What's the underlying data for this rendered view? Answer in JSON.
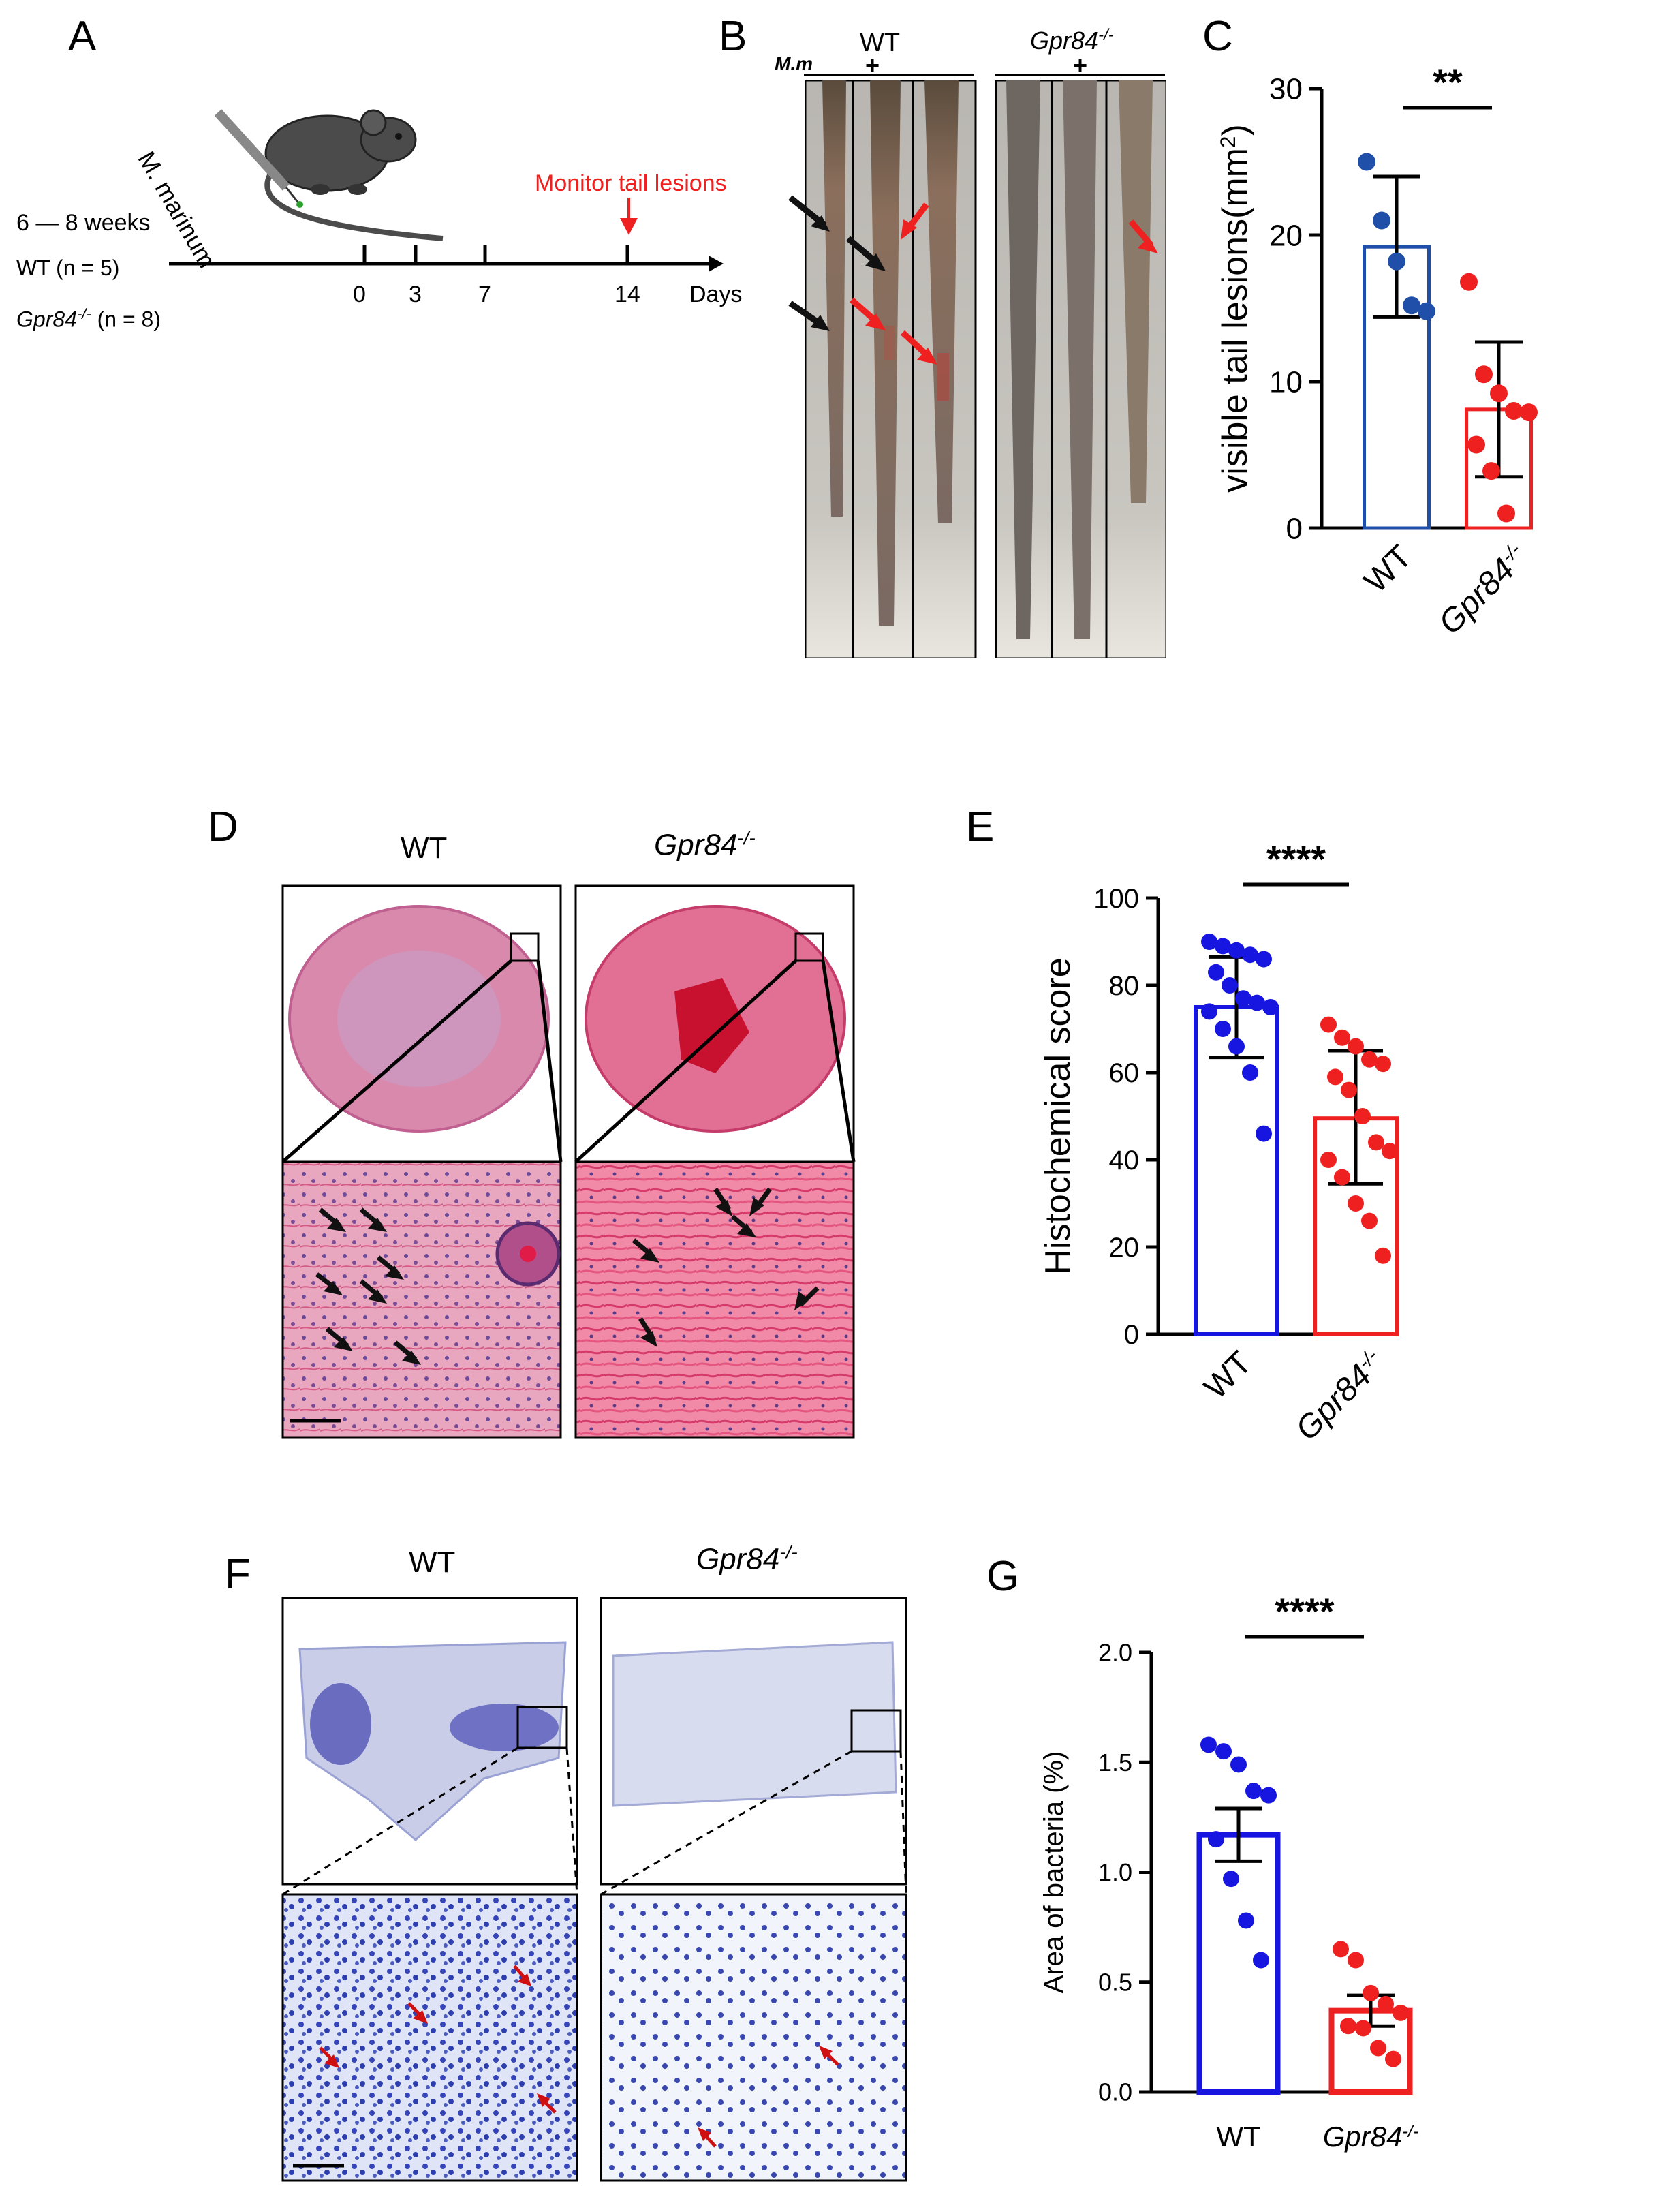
{
  "colors": {
    "wt_blue": "#1f4fa8",
    "wt_blue_bright": "#1616e0",
    "ko_red": "#ee2020",
    "he_pink": "#e6789a",
    "gram_blue": "#4a5cc0"
  },
  "panel_a": {
    "label": "A",
    "rotated_text": "M. marinum",
    "age": "6 —  8 weeks",
    "wt": "WT (n = 5)",
    "ko_gene": "Gpr84",
    "ko_super": "-/-",
    "ko_n": " (n = 8)",
    "monitor": "Monitor tail lesions",
    "days_label": "Days",
    "ticks": [
      "0",
      "3",
      "7",
      "14"
    ]
  },
  "panel_b": {
    "label": "B",
    "mm": "M.m",
    "wt": "WT",
    "ko_gene": "Gpr84",
    "ko_super": "-/-",
    "plus": "+"
  },
  "panel_d": {
    "label": "D",
    "wt": "WT",
    "ko_gene": "Gpr84",
    "ko_super": "-/-"
  },
  "panel_f": {
    "label": "F",
    "wt": "WT",
    "ko_gene": "Gpr84",
    "ko_super": "-/-"
  },
  "chart_data": [
    {
      "panel": "C",
      "type": "bar",
      "categories": [
        "WT",
        "Gpr84-/-"
      ],
      "category_labels": [
        "WT",
        "Gpr84",
        "-/-"
      ],
      "ylabel": "visible tail lesions(mm²)",
      "ylabel_main": "visible tail lesions(mm",
      "ylabel_sup": "2",
      "ylabel_end": ")",
      "ylim": [
        0,
        30
      ],
      "yticks": [
        0,
        10,
        20,
        30
      ],
      "significance": "**",
      "series": [
        {
          "name": "WT",
          "mean": 19.2,
          "sd_upper": 24.0,
          "sd_lower": 14.4,
          "points": [
            25.0,
            21.0,
            18.2,
            15.2,
            14.8
          ]
        },
        {
          "name": "Gpr84-/-",
          "mean": 8.1,
          "sd_upper": 12.7,
          "sd_lower": 3.5,
          "points": [
            16.8,
            10.5,
            9.2,
            8.0,
            7.9,
            5.7,
            3.9,
            1.0
          ]
        }
      ]
    },
    {
      "panel": "E",
      "type": "bar",
      "categories": [
        "WT",
        "Gpr84-/-"
      ],
      "category_labels": [
        "WT",
        "Gpr84",
        "-/-"
      ],
      "ylabel": "Histochemical score",
      "ylim": [
        0,
        100
      ],
      "yticks": [
        0,
        20,
        40,
        60,
        80,
        100
      ],
      "significance": "****",
      "series": [
        {
          "name": "WT",
          "mean": 75,
          "sd_upper": 86.5,
          "sd_lower": 63.5,
          "points": [
            90,
            89,
            88,
            87,
            86,
            83,
            80,
            77,
            76,
            75,
            74,
            70,
            66,
            60,
            46
          ]
        },
        {
          "name": "Gpr84-/-",
          "mean": 49.5,
          "sd_upper": 65,
          "sd_lower": 34.5,
          "points": [
            71,
            68,
            66,
            63,
            62,
            59,
            56,
            50,
            44,
            42,
            40,
            36,
            30,
            26,
            18
          ]
        }
      ]
    },
    {
      "panel": "G",
      "type": "bar",
      "categories": [
        "WT",
        "Gpr84-/-"
      ],
      "category_labels": [
        "WT",
        "Gpr84",
        "-/-"
      ],
      "ylabel": "Area of bacteria (%)",
      "ylim": [
        0,
        2.0
      ],
      "yticks": [
        "0.0",
        "0.5",
        "1.0",
        "1.5",
        "2.0"
      ],
      "significance": "****",
      "series": [
        {
          "name": "WT",
          "mean": 1.17,
          "sem_upper": 1.29,
          "sem_lower": 1.05,
          "points": [
            1.58,
            1.55,
            1.49,
            1.37,
            1.35,
            1.15,
            0.97,
            0.78,
            0.6
          ]
        },
        {
          "name": "Gpr84-/-",
          "mean": 0.37,
          "sem_upper": 0.44,
          "sem_lower": 0.3,
          "points": [
            0.65,
            0.6,
            0.45,
            0.4,
            0.36,
            0.3,
            0.29,
            0.2,
            0.15
          ]
        }
      ]
    }
  ]
}
